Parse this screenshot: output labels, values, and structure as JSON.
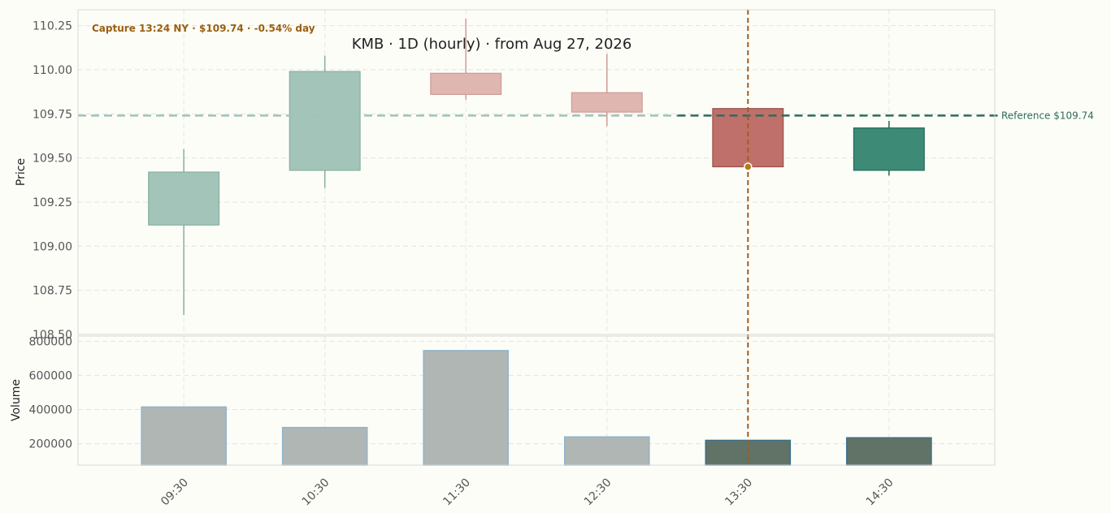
{
  "header": {
    "capture_label": "Capture 13:24 NY · $109.74 · -0.54% day",
    "title": "KMB · 1D (hourly) · from Aug 27, 2026"
  },
  "reference_label": "Reference $109.74",
  "colors": {
    "up": "#3d8b76",
    "down": "#c0706a",
    "up_past": "#a3c4b8",
    "down_past": "#e0b6b1",
    "vol_past": "#b0b6b3",
    "vol_current": "#617367",
    "vol_edge": "#8fb4cc",
    "vol_edge_current": "#3f6d8a",
    "reference_line": "#2e6b5c",
    "reference_line_past": "#9fc4b8",
    "crosshair": "#a35a1c",
    "capture_text": "#9a5f12",
    "background": "#fdfdf8"
  },
  "chart_data": {
    "type": "candlestick",
    "title": "KMB · 1D (hourly) · from Aug 27, 2026",
    "categories": [
      "09:30",
      "10:30",
      "11:30",
      "12:30",
      "13:30",
      "14:30"
    ],
    "candles": [
      {
        "x": "09:30",
        "open": 109.12,
        "high": 109.55,
        "low": 108.61,
        "close": 109.42
      },
      {
        "x": "10:30",
        "open": 109.43,
        "high": 110.08,
        "low": 109.33,
        "close": 109.99
      },
      {
        "x": "11:30",
        "open": 109.98,
        "high": 110.29,
        "low": 109.83,
        "close": 109.86
      },
      {
        "x": "12:30",
        "open": 109.87,
        "high": 110.09,
        "low": 109.68,
        "close": 109.76
      },
      {
        "x": "13:30",
        "open": 109.78,
        "high": 109.78,
        "low": 109.44,
        "close": 109.45
      },
      {
        "x": "14:30",
        "open": 109.43,
        "high": 109.71,
        "low": 109.4,
        "close": 109.67
      }
    ],
    "volume": [
      415000,
      295000,
      745000,
      240000,
      220000,
      235000
    ],
    "price_axis": {
      "label": "Price",
      "ylim": [
        108.5,
        110.34
      ],
      "ticks": [
        108.5,
        108.75,
        109.0,
        109.25,
        109.5,
        109.75,
        110.0,
        110.25
      ]
    },
    "volume_axis": {
      "label": "Volume",
      "ylim": [
        75000,
        830000
      ],
      "ticks": [
        200000,
        400000,
        600000,
        800000
      ]
    },
    "reference_price": 109.74,
    "crosshair": {
      "x": "13:30",
      "price": 109.45
    },
    "current_index": 4,
    "grid": true
  }
}
